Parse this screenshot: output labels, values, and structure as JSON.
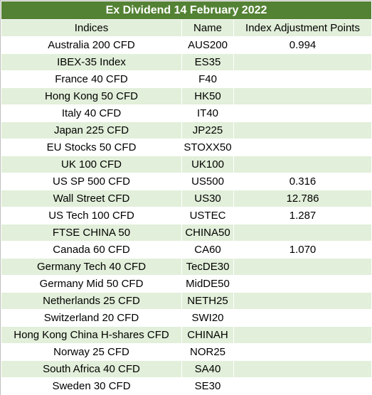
{
  "title": "Ex Dividend 14 February 2022",
  "headers": {
    "indices": "Indices",
    "name": "Name",
    "points": "Index Adjustment Points"
  },
  "rows": [
    {
      "index": "Australia 200 CFD",
      "name": "AUS200",
      "points": "0.994"
    },
    {
      "index": "IBEX-35 Index",
      "name": "ES35",
      "points": ""
    },
    {
      "index": "France 40 CFD",
      "name": "F40",
      "points": ""
    },
    {
      "index": "Hong Kong 50 CFD",
      "name": "HK50",
      "points": ""
    },
    {
      "index": "Italy 40 CFD",
      "name": "IT40",
      "points": ""
    },
    {
      "index": "Japan 225 CFD",
      "name": "JP225",
      "points": ""
    },
    {
      "index": "EU Stocks 50 CFD",
      "name": "STOXX50",
      "points": ""
    },
    {
      "index": "UK 100 CFD",
      "name": "UK100",
      "points": ""
    },
    {
      "index": "US SP 500 CFD",
      "name": "US500",
      "points": "0.316"
    },
    {
      "index": "Wall Street CFD",
      "name": "US30",
      "points": "12.786"
    },
    {
      "index": "US Tech 100 CFD",
      "name": "USTEC",
      "points": "1.287"
    },
    {
      "index": "FTSE CHINA 50",
      "name": "CHINA50",
      "points": ""
    },
    {
      "index": "Canada 60 CFD",
      "name": "CA60",
      "points": "1.070"
    },
    {
      "index": "Germany Tech 40 CFD",
      "name": "TecDE30",
      "points": ""
    },
    {
      "index": "Germany Mid 50 CFD",
      "name": "MidDE50",
      "points": ""
    },
    {
      "index": "Netherlands 25 CFD",
      "name": "NETH25",
      "points": ""
    },
    {
      "index": "Switzerland 20 CFD",
      "name": "SWI20",
      "points": ""
    },
    {
      "index": "Hong Kong China H-shares CFD",
      "name": "CHINAH",
      "points": ""
    },
    {
      "index": "Norway 25 CFD",
      "name": "NOR25",
      "points": ""
    },
    {
      "index": "South Africa 40 CFD",
      "name": "SA40",
      "points": ""
    },
    {
      "index": "Sweden 30 CFD",
      "name": "SE30",
      "points": ""
    }
  ],
  "colors": {
    "title_bg": "#548235",
    "title_text": "#ffffff",
    "band": "#e2efda"
  }
}
